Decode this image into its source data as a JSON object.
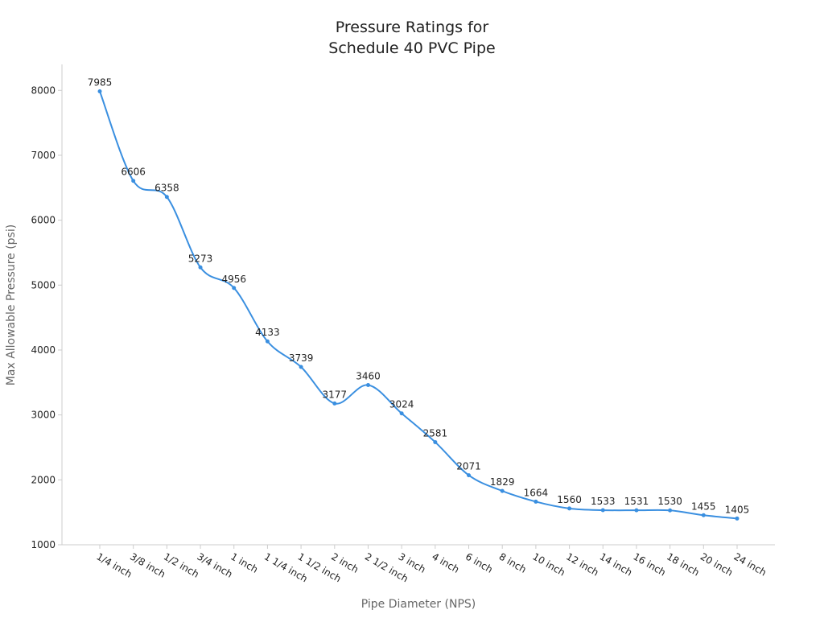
{
  "chart_data": {
    "type": "line",
    "title": [
      "Pressure Ratings for",
      "Schedule 40 PVC Pipe"
    ],
    "x_label": "Pipe Diameter (NPS)",
    "y_label": "Max Allowable Pressure (psi)",
    "categories": [
      "1/4 inch",
      "3/8 inch",
      "1/2 inch",
      "3/4 inch",
      "1 inch",
      "1 1/4 inch",
      "1 1/2 inch",
      "2 inch",
      "2 1/2 inch",
      "3 inch",
      "4 inch",
      "6 inch",
      "8 inch",
      "10 inch",
      "12 inch",
      "14 inch",
      "16 inch",
      "18 inch",
      "20 inch",
      "24 inch"
    ],
    "values": [
      7985,
      6606,
      6358,
      5273,
      4956,
      4133,
      3739,
      3177,
      3460,
      3024,
      2581,
      2071,
      1829,
      1664,
      1560,
      1533,
      1531,
      1530,
      1455,
      1405
    ],
    "color": "#3a8fe0",
    "ylim": [
      1000,
      8400
    ],
    "yticks": [
      1000,
      2000,
      3000,
      4000,
      5000,
      6000,
      7000,
      8000
    ],
    "smooth": true
  }
}
